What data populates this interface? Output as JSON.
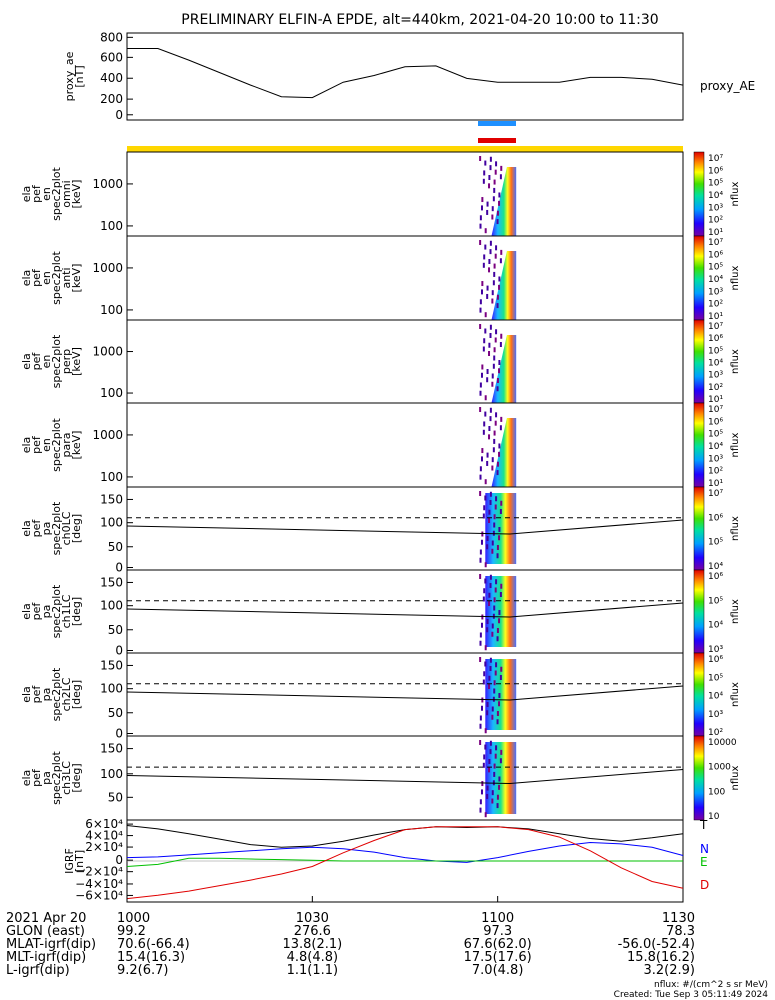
{
  "title": "PRELIMINARY ELFIN-A EPDE, alt=440km, 2021-04-20 10:00 to 11:30",
  "panels": [
    {
      "id": "proxy-ae",
      "ylabel": [
        "proxy_ae",
        "[nT]"
      ],
      "ticks": [
        "800",
        "600",
        "400",
        "200",
        "0"
      ],
      "right_label": "proxy_AE"
    },
    {
      "id": "omni",
      "ylabel": [
        "ela",
        "pef",
        "en",
        "spec2plot",
        "omni",
        "[keV]"
      ],
      "ticks": [
        "1000",
        "100"
      ],
      "cbar_ticks": [
        "10⁷",
        "10⁶",
        "10⁵",
        "10⁴",
        "10³",
        "10²",
        "10¹"
      ],
      "cbar_label": "nflux"
    },
    {
      "id": "anti",
      "ylabel": [
        "ela",
        "pef",
        "en",
        "spec2plot",
        "anti",
        "[keV]"
      ],
      "ticks": [
        "1000",
        "100"
      ],
      "cbar_ticks": [
        "10⁷",
        "10⁶",
        "10⁵",
        "10⁴",
        "10³",
        "10²",
        "10¹"
      ],
      "cbar_label": "nflux"
    },
    {
      "id": "perp",
      "ylabel": [
        "ela",
        "pef",
        "en",
        "spec2plot",
        "perp",
        "[keV]"
      ],
      "ticks": [
        "1000",
        "100"
      ],
      "cbar_ticks": [
        "10⁷",
        "10⁶",
        "10⁵",
        "10⁴",
        "10³",
        "10²",
        "10¹"
      ],
      "cbar_label": "nflux"
    },
    {
      "id": "para",
      "ylabel": [
        "ela",
        "pef",
        "en",
        "spec2plot",
        "para",
        "[keV]"
      ],
      "ticks": [
        "1000",
        "100"
      ],
      "cbar_ticks": [
        "10⁷",
        "10⁶",
        "10⁵",
        "10⁴",
        "10³",
        "10²",
        "10¹"
      ],
      "cbar_label": "nflux"
    },
    {
      "id": "ch0LC",
      "ylabel": [
        "ela",
        "pef",
        "pa",
        "spec2plot",
        "ch0LC",
        "[deg]"
      ],
      "ticks": [
        "150",
        "100",
        "50",
        "0"
      ],
      "cbar_ticks": [
        "10⁷",
        "10⁶",
        "10⁵",
        "10⁴"
      ],
      "cbar_label": "nflux"
    },
    {
      "id": "ch1LC",
      "ylabel": [
        "ela",
        "pef",
        "pa",
        "spec2plot",
        "ch1LC",
        "[deg]"
      ],
      "ticks": [
        "150",
        "100",
        "50",
        "0"
      ],
      "cbar_ticks": [
        "10⁶",
        "10⁵",
        "10⁴",
        "10³"
      ],
      "cbar_label": "nflux"
    },
    {
      "id": "ch2LC",
      "ylabel": [
        "ela",
        "pef",
        "pa",
        "spec2plot",
        "ch2LC",
        "[deg]"
      ],
      "ticks": [
        "150",
        "100",
        "50",
        "0"
      ],
      "cbar_ticks": [
        "10⁶",
        "10⁵",
        "10⁴",
        "10³",
        "10²"
      ],
      "cbar_label": "nflux"
    },
    {
      "id": "ch3LC",
      "ylabel": [
        "ela",
        "pef",
        "pa",
        "spec2plot",
        "ch3LC",
        "[deg]"
      ],
      "ticks": [
        "150",
        "100",
        "50"
      ],
      "cbar_ticks": [
        "10000",
        "1000",
        "100",
        "10"
      ],
      "cbar_label": "nflux"
    },
    {
      "id": "igrf",
      "ylabel": [
        "IGRF",
        "[nT]"
      ],
      "ticks": [
        "6×10⁴",
        "4×10⁴",
        "2×10⁴",
        "0",
        "−2×10⁴",
        "−4×10⁴",
        "−6×10⁴"
      ],
      "legend": [
        "T",
        "N",
        "E",
        "D"
      ]
    }
  ],
  "x_axis": {
    "row_labels": [
      "2021 Apr 20",
      "GLON (east)",
      "MLAT-igrf(dip)",
      "MLT-igrf(dip)",
      "L-igrf(dip)"
    ],
    "columns": [
      [
        "1000",
        "99.2",
        "70.6(-66.4)",
        "15.4(16.3)",
        "9.2(6.7)"
      ],
      [
        "1030",
        "276.6",
        "13.8(2.1)",
        "4.8(4.8)",
        "1.1(1.1)"
      ],
      [
        "1100",
        "97.3",
        "67.6(62.0)",
        "17.5(17.6)",
        "7.0(4.8)"
      ],
      [
        "1130",
        "78.3",
        "-56.0(-52.4)",
        "15.8(16.2)",
        "3.2(2.9)"
      ]
    ]
  },
  "footer": {
    "units": "nflux: #/(cm^2 s sr MeV)",
    "created": "Created: Tue Sep  3 05:11:49 2024"
  },
  "colors": {
    "T": "#000000",
    "N": "#0000ff",
    "E": "#00c000",
    "D": "#e00000",
    "bar_yellow": "#ffd700",
    "bar_blue": "#1e90ff",
    "bar_red": "#e00000"
  },
  "chart_data": {
    "type": "line",
    "title": "PRELIMINARY ELFIN-A EPDE, alt=440km, 2021-04-20 10:00 to 11:30",
    "x": [
      "10:00",
      "10:05",
      "10:10",
      "10:15",
      "10:20",
      "10:25",
      "10:30",
      "10:35",
      "10:40",
      "10:45",
      "10:50",
      "10:55",
      "11:00",
      "11:05",
      "11:10",
      "11:15",
      "11:20",
      "11:25",
      "11:30"
    ],
    "series": [
      {
        "name": "proxy_AE",
        "values": [
          680,
          680,
          560,
          430,
          300,
          180,
          170,
          330,
          400,
          490,
          500,
          370,
          330,
          330,
          330,
          380,
          380,
          360,
          300
        ]
      }
    ],
    "ylim": [
      0,
      800
    ],
    "igrf_series": [
      {
        "name": "T",
        "values": [
          52000,
          47000,
          40000,
          32000,
          24000,
          20000,
          22000,
          29000,
          38000,
          46000,
          50000,
          49000,
          50000,
          47000,
          40000,
          33000,
          29000,
          34000,
          40000
        ]
      },
      {
        "name": "N",
        "values": [
          5000,
          6000,
          9000,
          12000,
          15000,
          18000,
          20000,
          18000,
          13000,
          5000,
          0,
          -2000,
          5000,
          14000,
          22000,
          27000,
          25000,
          20000,
          8000
        ]
      },
      {
        "name": "E",
        "values": [
          -8000,
          -5000,
          4000,
          4000,
          3000,
          2000,
          1000,
          0,
          0,
          0,
          0,
          0,
          0,
          0,
          0,
          0,
          0,
          0,
          0
        ]
      },
      {
        "name": "D",
        "values": [
          -55000,
          -50000,
          -44000,
          -36000,
          -28000,
          -19000,
          -8000,
          12000,
          30000,
          46000,
          50000,
          50000,
          50000,
          46000,
          35000,
          15000,
          -10000,
          -30000,
          -40000
        ]
      }
    ],
    "igrf_ylim": [
      -60000,
      60000
    ]
  }
}
